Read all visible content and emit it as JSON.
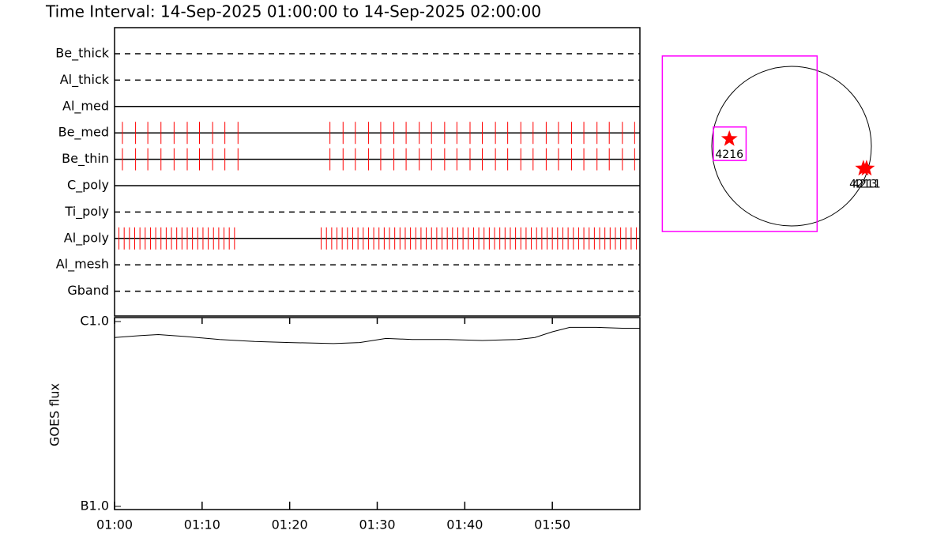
{
  "title": "Time Interval: 14-Sep-2025 01:00:00 to 14-Sep-2025 02:00:00",
  "chart_data": [
    {
      "type": "timeline",
      "xlim": [
        0,
        60
      ],
      "color": "#ff0000",
      "rows": [
        {
          "name": "Be_thick",
          "line_style": "dashed",
          "exposures": []
        },
        {
          "name": "Al_thick",
          "line_style": "dashed",
          "exposures": []
        },
        {
          "name": "Al_med",
          "line_style": "solid",
          "exposures": []
        },
        {
          "name": "Be_med",
          "line_style": "solid",
          "exposures": [
            0.9,
            2.4,
            3.8,
            5.3,
            6.8,
            8.3,
            9.7,
            11.2,
            12.6,
            14.1,
            24.6,
            26.1,
            27.5,
            29.0,
            30.4,
            31.9,
            33.3,
            34.8,
            36.2,
            37.7,
            39.1,
            40.6,
            42.0,
            43.5,
            44.9,
            46.4,
            47.8,
            49.3,
            50.7,
            52.2,
            53.6,
            55.1,
            56.5,
            58.0,
            59.4
          ]
        },
        {
          "name": "Be_thin",
          "line_style": "solid",
          "exposures": [
            0.9,
            2.4,
            3.8,
            5.3,
            6.8,
            8.3,
            9.7,
            11.2,
            12.6,
            14.1,
            24.6,
            26.1,
            27.5,
            29.0,
            30.4,
            31.9,
            33.3,
            34.8,
            36.2,
            37.7,
            39.1,
            40.6,
            42.0,
            43.5,
            44.9,
            46.4,
            47.8,
            49.3,
            50.7,
            52.2,
            53.6,
            55.1,
            56.5,
            58.0,
            59.4
          ]
        },
        {
          "name": "C_poly",
          "line_style": "solid",
          "exposures": []
        },
        {
          "name": "Ti_poly",
          "line_style": "dashed",
          "exposures": []
        },
        {
          "name": "Al_poly",
          "line_style": "solid",
          "exposures": [
            0.5,
            1.1,
            1.7,
            2.3,
            2.9,
            3.5,
            4.1,
            4.7,
            5.3,
            5.9,
            6.5,
            7.1,
            7.7,
            8.3,
            8.9,
            9.5,
            10.1,
            10.7,
            11.3,
            11.9,
            12.5,
            13.1,
            13.7,
            23.6,
            24.2,
            24.8,
            25.4,
            26.0,
            26.6,
            27.2,
            27.8,
            28.4,
            29.0,
            29.6,
            30.2,
            30.8,
            31.4,
            32.0,
            32.6,
            33.2,
            33.8,
            34.4,
            35.0,
            35.6,
            36.2,
            36.8,
            37.4,
            38.0,
            38.6,
            39.2,
            39.8,
            40.4,
            41.0,
            41.6,
            42.2,
            42.8,
            43.4,
            44.0,
            44.6,
            45.2,
            45.8,
            46.4,
            47.0,
            47.6,
            48.2,
            48.8,
            49.4,
            50.0,
            50.6,
            51.2,
            51.8,
            52.4,
            53.0,
            53.6,
            54.2,
            54.8,
            55.4,
            56.0,
            56.6,
            57.2,
            57.8,
            58.4,
            59.0,
            59.6
          ]
        },
        {
          "name": "Al_mesh",
          "line_style": "dashed",
          "exposures": []
        },
        {
          "name": "Gband",
          "line_style": "dashed",
          "exposures": []
        }
      ]
    },
    {
      "type": "line",
      "ylabel": "GOES flux",
      "log_scale": true,
      "color": "#000000",
      "xlim": [
        0,
        60
      ],
      "xticks": [
        {
          "value": 0,
          "label": "01:00"
        },
        {
          "value": 10,
          "label": "01:10"
        },
        {
          "value": 20,
          "label": "01:20"
        },
        {
          "value": 30,
          "label": "01:30"
        },
        {
          "value": 40,
          "label": "01:40"
        },
        {
          "value": 50,
          "label": "01:50"
        }
      ],
      "ylim": [
        1e-07,
        1e-06
      ],
      "yticks": [
        {
          "value": 1e-06,
          "label": "C1.0"
        },
        {
          "value": 1e-07,
          "label": "B1.0"
        }
      ],
      "x": [
        0,
        3,
        5,
        8,
        12,
        16,
        20,
        25,
        28,
        31,
        34,
        38,
        42,
        46,
        48,
        50,
        52,
        55,
        58,
        60
      ],
      "values": [
        8.2e-07,
        8.4e-07,
        8.5e-07,
        8.3e-07,
        8e-07,
        7.8e-07,
        7.7e-07,
        7.6e-07,
        7.7e-07,
        8.1e-07,
        8e-07,
        8e-07,
        7.9e-07,
        8e-07,
        8.2e-07,
        8.8e-07,
        9.3e-07,
        9.3e-07,
        9.2e-07,
        9.2e-07
      ]
    },
    {
      "type": "map",
      "color": "#ff0000",
      "fov_color": "#ff00ff",
      "regions": [
        {
          "label": "4216",
          "x": -0.78,
          "y": 0.09
        },
        {
          "label": "4211",
          "x": 0.94,
          "y": -0.28
        },
        {
          "label": "4213",
          "x": 0.9,
          "y": -0.28
        }
      ],
      "fov": [
        {
          "x": [
            -1.62,
            0.32
          ],
          "y": [
            1.13,
            -1.07
          ]
        },
        {
          "x": [
            -0.98,
            -0.57
          ],
          "y": [
            0.24,
            -0.18
          ]
        }
      ]
    }
  ]
}
